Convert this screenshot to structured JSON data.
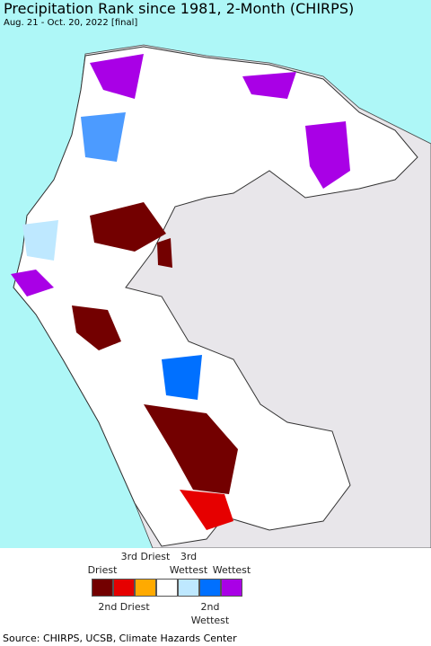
{
  "header": {
    "title": "Precipitation Rank since 1981, 2-Month (CHIRPS)",
    "subtitle": "Aug. 21 - Oct. 20, 2022 [final]"
  },
  "legend": {
    "items": [
      {
        "color": "#730000",
        "label": "Driest",
        "position": "top"
      },
      {
        "color": "#e60000",
        "label": "2nd Driest",
        "position": "bottom"
      },
      {
        "color": "#ffaa00",
        "label": "3rd Driest",
        "position": "top"
      },
      {
        "color": "#ffffff"
      },
      {
        "color": "#bee8ff",
        "label": "3rd Wettest",
        "position": "top"
      },
      {
        "color": "#0070ff",
        "label": "2nd Wettest",
        "position": "bottom"
      },
      {
        "color": "#a900e6",
        "label": "Wettest",
        "position": "top"
      }
    ]
  },
  "footer": {
    "source": "Source: CHIRPS, UCSB, Climate Hazards Center"
  }
}
